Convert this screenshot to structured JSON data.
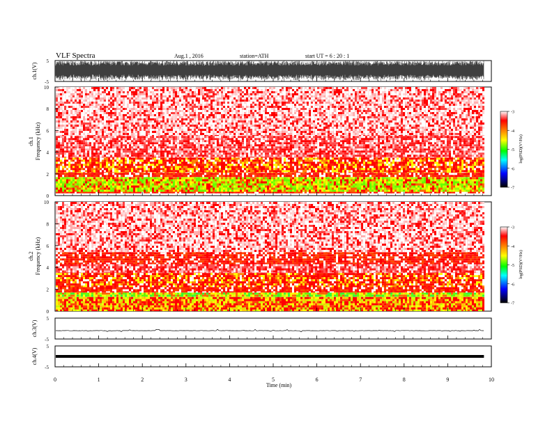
{
  "header": {
    "title": "VLF  Spectra",
    "date": "Aug.1  , 2016",
    "station": "station=ATH",
    "start": "start  UT  =   6  : 20 : 1"
  },
  "chart_data": [
    {
      "type": "line",
      "panel": "ch1-waveform",
      "ylabel": "ch.1(V)",
      "ylim": [
        -5,
        5
      ],
      "yticks": [
        "5",
        "-5"
      ],
      "signal": "dense broadband waveform, nearly full scale",
      "series_color": "#000000"
    },
    {
      "type": "heatmap",
      "panel": "ch1-spectrogram",
      "ylabel_line1": "ch.1",
      "ylabel_line2": "Frequency  (kHz)",
      "ylim": [
        0,
        10
      ],
      "yticks": [
        "0",
        "2",
        "4",
        "6",
        "8",
        "10"
      ],
      "bands": [
        {
          "from": 0.2,
          "to": 0.35,
          "level": "red"
        },
        {
          "from": 0.35,
          "to": 1.7,
          "level": "yellow-green"
        },
        {
          "from": 1.7,
          "to": 2.1,
          "level": "red"
        },
        {
          "from": 2.1,
          "to": 3.5,
          "level": "red-yellow"
        },
        {
          "from": 3.5,
          "to": 5.5,
          "level": "light-red"
        },
        {
          "from": 5.5,
          "to": 10,
          "level": "sparse-red"
        }
      ]
    },
    {
      "type": "heatmap",
      "panel": "ch2-spectrogram",
      "ylabel_line1": "ch.2",
      "ylabel_line2": "Frequency  (kHz)",
      "ylim": [
        0,
        10
      ],
      "yticks": [
        "0",
        "2",
        "4",
        "6",
        "8",
        "10"
      ],
      "bands": [
        {
          "from": 0,
          "to": 1.3,
          "level": "yellow-red"
        },
        {
          "from": 1.3,
          "to": 1.7,
          "level": "green-yellow"
        },
        {
          "from": 1.7,
          "to": 2.2,
          "level": "red"
        },
        {
          "from": 2.2,
          "to": 3.5,
          "level": "red-yellow"
        },
        {
          "from": 3.5,
          "to": 4.3,
          "level": "light-red"
        },
        {
          "from": 4.3,
          "to": 5.4,
          "level": "red"
        },
        {
          "from": 5.4,
          "to": 10,
          "level": "sparse-red"
        }
      ]
    },
    {
      "type": "line",
      "panel": "ch3-waveform",
      "ylabel": "ch.3(V)",
      "ylim": [
        -5,
        5
      ],
      "yticks": [
        "5",
        "-5"
      ],
      "level": -1.0,
      "series_color": "#000000"
    },
    {
      "type": "line",
      "panel": "ch4-waveform",
      "ylabel": "ch.4(V)",
      "ylim": [
        -5,
        5
      ],
      "yticks": [
        "5",
        "-5"
      ],
      "level": 0,
      "series_color": "#000000"
    }
  ],
  "xaxis": {
    "label": "Time  (min)",
    "range": [
      0,
      10
    ],
    "data_end": 9.83,
    "ticks": [
      "0",
      "1",
      "2",
      "3",
      "4",
      "5",
      "6",
      "7",
      "8",
      "9",
      "10"
    ]
  },
  "colorbar": {
    "label": "log(PSD)(V²/Hz)",
    "range": [
      -7,
      -3
    ],
    "ticks": [
      "-3",
      "-4",
      "-5",
      "-6",
      "-7"
    ],
    "colors": [
      "#ff0000",
      "#ffff00",
      "#00ff00",
      "#00ffff",
      "#0000ff",
      "#000000"
    ]
  }
}
